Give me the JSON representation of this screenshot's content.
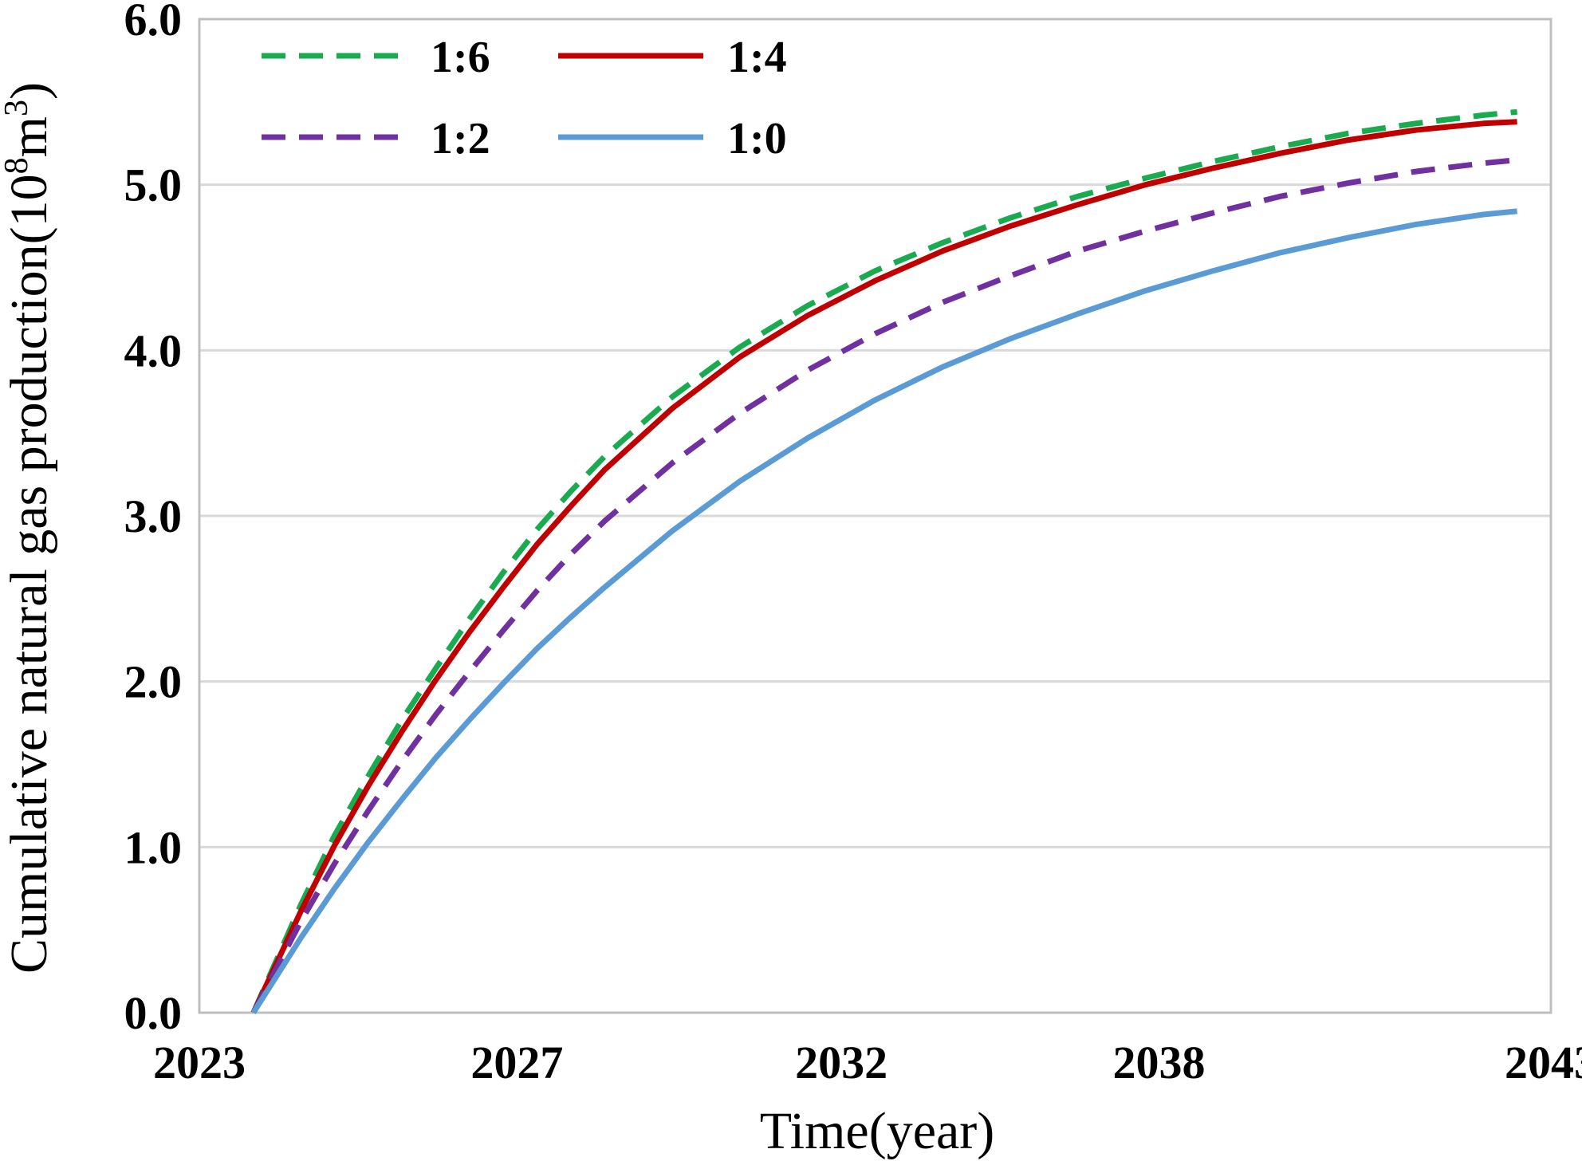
{
  "chart_data": {
    "type": "line",
    "title": "",
    "xlabel": "Time(year)",
    "ylabel_main": "Cumulative natural gas production(10",
    "ylabel_sup1": "8",
    "ylabel_mid": "m",
    "ylabel_sup2": "3",
    "ylabel_end": ")",
    "xlim": [
      2023,
      2043
    ],
    "ylim": [
      0,
      6
    ],
    "x_tick_values": [
      2023,
      2027.7,
      2032.5,
      2037.2,
      2043
    ],
    "x_tick_labels": [
      "2023",
      "2027",
      "2032",
      "2038",
      "2043"
    ],
    "y_ticks": [
      "0.0",
      "1.0",
      "2.0",
      "3.0",
      "4.0",
      "5.0",
      "6.0"
    ],
    "grid": "horizontal",
    "legend_position": "top-left",
    "x": [
      2023.8,
      2024.5,
      2025.0,
      2025.5,
      2026.0,
      2026.5,
      2027.0,
      2027.5,
      2028.0,
      2028.5,
      2029.0,
      2030.0,
      2031.0,
      2032.0,
      2033.0,
      2034.0,
      2035.0,
      2036.0,
      2037.0,
      2038.0,
      2039.0,
      2040.0,
      2041.0,
      2042.0,
      2042.5
    ],
    "series": [
      {
        "name": "1:6",
        "color": "#1aaa50",
        "dash": "dashed",
        "values": [
          0.0,
          0.65,
          1.07,
          1.43,
          1.77,
          2.08,
          2.38,
          2.66,
          2.92,
          3.15,
          3.36,
          3.72,
          4.02,
          4.27,
          4.48,
          4.65,
          4.8,
          4.93,
          5.04,
          5.14,
          5.23,
          5.31,
          5.37,
          5.42,
          5.44
        ]
      },
      {
        "name": "1:4",
        "color": "#c00000",
        "dash": "solid",
        "values": [
          0.0,
          0.61,
          1.01,
          1.37,
          1.7,
          2.01,
          2.3,
          2.57,
          2.83,
          3.06,
          3.28,
          3.65,
          3.96,
          4.21,
          4.42,
          4.6,
          4.75,
          4.88,
          5.0,
          5.1,
          5.19,
          5.27,
          5.33,
          5.37,
          5.38
        ]
      },
      {
        "name": "1:2",
        "color": "#7030a0",
        "dash": "dashed",
        "values": [
          0.0,
          0.55,
          0.9,
          1.22,
          1.52,
          1.8,
          2.06,
          2.31,
          2.55,
          2.77,
          2.97,
          3.32,
          3.62,
          3.88,
          4.1,
          4.29,
          4.45,
          4.6,
          4.72,
          4.83,
          4.93,
          5.01,
          5.08,
          5.13,
          5.15
        ]
      },
      {
        "name": "1:0",
        "color": "#5b9bd5",
        "dash": "solid",
        "values": [
          0.0,
          0.45,
          0.75,
          1.03,
          1.29,
          1.54,
          1.77,
          1.99,
          2.2,
          2.39,
          2.57,
          2.91,
          3.21,
          3.47,
          3.7,
          3.9,
          4.07,
          4.22,
          4.36,
          4.48,
          4.59,
          4.68,
          4.76,
          4.82,
          4.84
        ]
      }
    ]
  }
}
